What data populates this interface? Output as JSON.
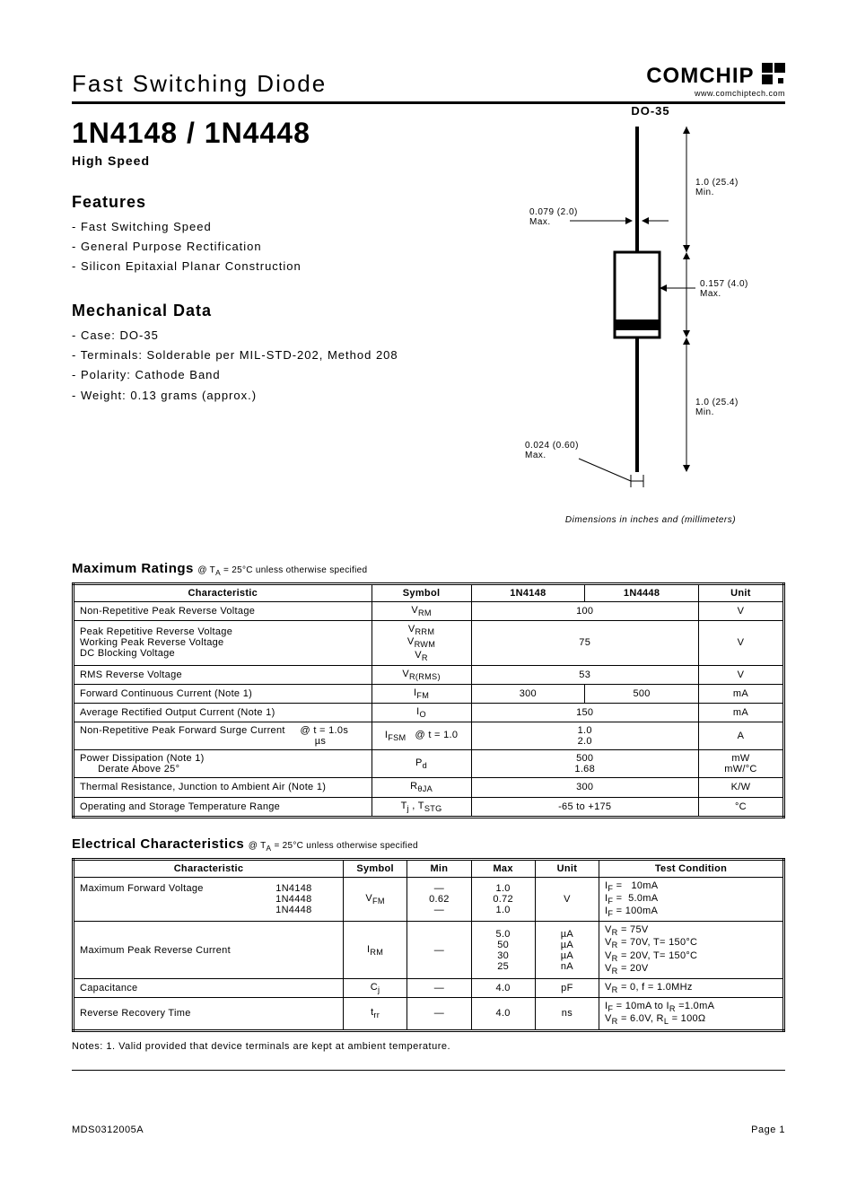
{
  "header": {
    "category": "Fast Switching Diode",
    "brand": "COMCHIP",
    "brand_url": "www.comchiptech.com"
  },
  "title": {
    "part": "1N4148 / 1N4448",
    "sub": "High Speed"
  },
  "package": {
    "label": "DO-35",
    "dims": {
      "lead_len_top": "1.0 (25.4)\nMin.",
      "lead_dia": "0.079 (2.0)\nMax.",
      "body_dia": "0.157 (4.0)\nMax.",
      "lead_len_bot": "1.0 (25.4)\nMin.",
      "body_len": "0.024 (0.60)\nMax."
    },
    "note": "Dimensions in inches and (millimeters)"
  },
  "features": {
    "head": "Features",
    "items": [
      "- Fast Switching Speed",
      "- General Purpose Rectification",
      "- Silicon Epitaxial Planar Construction"
    ]
  },
  "mechanical": {
    "head": "Mechanical Data",
    "items": [
      "- Case: DO-35",
      "- Terminals: Solderable per MIL-STD-202, Method 208",
      "- Polarity: Cathode Band",
      "- Weight: 0.13 grams (approx.)"
    ]
  },
  "max_ratings": {
    "title": "Maximum Ratings",
    "cond": "@ T",
    "cond_sub": "A",
    "cond_rest": " = 25°C unless otherwise specified",
    "headers": {
      "char": "Characteristic",
      "sym": "Symbol",
      "p1": "1N4148",
      "p2": "1N4448",
      "unit": "Unit"
    },
    "rows": [
      {
        "char": "Non-Repetitive Peak Reverse Voltage",
        "sym_html": "V<sub>RM</sub>",
        "v1": "100",
        "v2": null,
        "unit": "V"
      },
      {
        "char": "Peak Repetitive Reverse Voltage<br>Working Peak Reverse Voltage<br>DC Blocking Voltage",
        "sym_html": "V<sub>RRM</sub><br>V<sub>RWM</sub><br>V<sub>R</sub>",
        "v1": "75",
        "v2": null,
        "unit": "V"
      },
      {
        "char": "RMS Reverse Voltage",
        "sym_html": "V<sub>R(RMS)</sub>",
        "v1": "53",
        "v2": null,
        "unit": "V"
      },
      {
        "char": "Forward Continuous Current (Note 1)",
        "sym_html": "I<sub>FM</sub>",
        "v1": "300",
        "v2": "500",
        "unit": "mA"
      },
      {
        "char": "Average Rectified Output Current (Note 1)",
        "sym_html": "I<sub>O</sub>",
        "v1": "150",
        "v2": null,
        "unit": "mA"
      },
      {
        "char": "Non-Repetitive Peak Forward Surge Current &nbsp;&nbsp;&nbsp; @ t = 1.0s<br>&nbsp;&nbsp;&nbsp;&nbsp;&nbsp;&nbsp;&nbsp;&nbsp;&nbsp;&nbsp;&nbsp;&nbsp;&nbsp;&nbsp;&nbsp;&nbsp;&nbsp;&nbsp;&nbsp;&nbsp;&nbsp;&nbsp;&nbsp;&nbsp;&nbsp;&nbsp;&nbsp;&nbsp;&nbsp;&nbsp;&nbsp;&nbsp;&nbsp;&nbsp;&nbsp;&nbsp;&nbsp;&nbsp;&nbsp;&nbsp;&nbsp;&nbsp;&nbsp;&nbsp;&nbsp;&nbsp;&nbsp;&nbsp;&nbsp;&nbsp;&nbsp;&nbsp;&nbsp;&nbsp;&nbsp;&nbsp;&nbsp;&nbsp;&nbsp;&nbsp;&nbsp;&nbsp;&nbsp;&nbsp;&nbsp;&nbsp;&nbsp;&nbsp;&nbsp;&nbsp;&nbsp;&nbsp;&nbsp;&nbsp;&nbsp;&nbsp;&nbsp;&nbsp;µs",
        "sym_html": "I<sub>FSM</sub>&nbsp;&nbsp;&nbsp;@ t = 1.0",
        "v1": "1.0<br>2.0",
        "v2": null,
        "unit": "A"
      },
      {
        "char": "Power Dissipation (Note 1)<br>&nbsp;&nbsp;&nbsp;&nbsp;&nbsp;&nbsp;Derate Above 25°",
        "sym_html": "P<sub>d</sub>",
        "v1": "500<br>1.68",
        "v2": null,
        "unit": "mW<br>mW/°C"
      },
      {
        "char": "Thermal Resistance, Junction to Ambient Air (Note 1)",
        "sym_html": "R<sub>θJA</sub>",
        "v1": "300",
        "v2": null,
        "unit": "K/W"
      },
      {
        "char": "Operating and Storage Temperature Range",
        "sym_html": "T<sub>j</sub> , T<sub>STG</sub>",
        "v1": "-65 to +175",
        "v2": null,
        "unit": "°C"
      }
    ]
  },
  "elec": {
    "title": "Electrical Characteristics",
    "cond": " @ T",
    "cond_sub": "A",
    "cond_rest": " = 25°C unless otherwise specified",
    "headers": {
      "char": "Characteristic",
      "sym": "Symbol",
      "min": "Min",
      "max": "Max",
      "unit": "Unit",
      "tc": "Test Condition"
    },
    "rows": [
      {
        "char": "Maximum Forward Voltage&nbsp;&nbsp;&nbsp;&nbsp;&nbsp;&nbsp;&nbsp;&nbsp;&nbsp;&nbsp;&nbsp;&nbsp;&nbsp;&nbsp;&nbsp;&nbsp;&nbsp;&nbsp;&nbsp;&nbsp;&nbsp;&nbsp;&nbsp;&nbsp;1N4148<br>&nbsp;&nbsp;&nbsp;&nbsp;&nbsp;&nbsp;&nbsp;&nbsp;&nbsp;&nbsp;&nbsp;&nbsp;&nbsp;&nbsp;&nbsp;&nbsp;&nbsp;&nbsp;&nbsp;&nbsp;&nbsp;&nbsp;&nbsp;&nbsp;&nbsp;&nbsp;&nbsp;&nbsp;&nbsp;&nbsp;&nbsp;&nbsp;&nbsp;&nbsp;&nbsp;&nbsp;&nbsp;&nbsp;&nbsp;&nbsp;&nbsp;&nbsp;&nbsp;&nbsp;&nbsp;&nbsp;&nbsp;&nbsp;&nbsp;&nbsp;&nbsp;&nbsp;&nbsp;&nbsp;&nbsp;&nbsp;&nbsp;&nbsp;&nbsp;&nbsp;&nbsp;&nbsp;&nbsp;&nbsp;&nbsp;1N4448<br>&nbsp;&nbsp;&nbsp;&nbsp;&nbsp;&nbsp;&nbsp;&nbsp;&nbsp;&nbsp;&nbsp;&nbsp;&nbsp;&nbsp;&nbsp;&nbsp;&nbsp;&nbsp;&nbsp;&nbsp;&nbsp;&nbsp;&nbsp;&nbsp;&nbsp;&nbsp;&nbsp;&nbsp;&nbsp;&nbsp;&nbsp;&nbsp;&nbsp;&nbsp;&nbsp;&nbsp;&nbsp;&nbsp;&nbsp;&nbsp;&nbsp;&nbsp;&nbsp;&nbsp;&nbsp;&nbsp;&nbsp;&nbsp;&nbsp;&nbsp;&nbsp;&nbsp;&nbsp;&nbsp;&nbsp;&nbsp;&nbsp;&nbsp;&nbsp;&nbsp;&nbsp;&nbsp;&nbsp;&nbsp;&nbsp;1N4448",
        "sym_html": "V<sub>FM</sub>",
        "min": "—<br>0.62<br>—",
        "max": "1.0<br>0.72<br>1.0",
        "unit": "V",
        "tc": "I<sub>F</sub> = &nbsp;&nbsp;10mA<br>I<sub>F</sub> = &nbsp;5.0mA<br>I<sub>F</sub> = 100mA"
      },
      {
        "char": "Maximum Peak Reverse Current",
        "sym_html": "I<sub>RM</sub>",
        "min": "—",
        "max": "5.0<br>50<br>30<br>25",
        "unit": "µA<br>µA<br>µA<br>nA",
        "tc": "V<sub>R</sub> = 75V<br>V<sub>R</sub> = 70V, T= 150°C<br>V<sub>R</sub> = 20V, T= 150°C<br>V<sub>R</sub> = 20V"
      },
      {
        "char": "Capacitance",
        "sym_html": "C<sub>j</sub>",
        "min": "—",
        "max": "4.0",
        "unit": "pF",
        "tc": "V<sub>R</sub> = 0, f = 1.0MHz"
      },
      {
        "char": "Reverse Recovery Time",
        "sym_html": "t<sub>rr</sub>",
        "min": "—",
        "max": "4.0",
        "unit": "ns",
        "tc": "I<sub>F</sub> = 10mA to I<sub>R</sub> =1.0mA<br>V<sub>R</sub> = 6.0V, R<sub>L</sub> = 100Ω"
      }
    ]
  },
  "notes": "Notes: 1. Valid provided that device terminals are kept at ambient temperature.",
  "footer": {
    "doc": "MDS0312005A",
    "page": "Page 1"
  },
  "colors": {
    "text": "#000000",
    "bg": "#ffffff"
  }
}
